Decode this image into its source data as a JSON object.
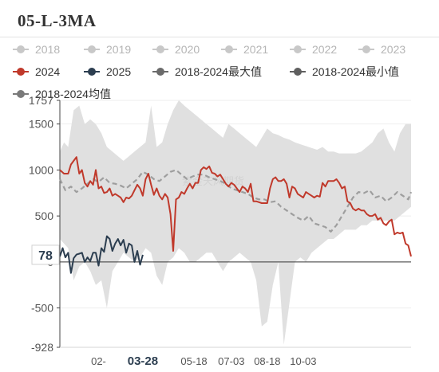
{
  "page": {
    "title": "05-L-3MA"
  },
  "legend": [
    {
      "label": "2018",
      "color": "#c8c8c8"
    },
    {
      "label": "2019",
      "color": "#c8c8c8"
    },
    {
      "label": "2020",
      "color": "#c8c8c8"
    },
    {
      "label": "2021",
      "color": "#c8c8c8"
    },
    {
      "label": "2022",
      "color": "#c8c8c8"
    },
    {
      "label": "2023",
      "color": "#c8c8c8"
    },
    {
      "label": "2024",
      "color": "#c0392b"
    },
    {
      "label": "2025",
      "color": "#2c3e50"
    },
    {
      "label": "2018-2024最大值",
      "color": "#6b6b6b"
    },
    {
      "label": "2018-2024最小值",
      "color": "#5f5f5f"
    },
    {
      "label": "2018-2024均值",
      "color": "#7a7a7a"
    }
  ],
  "watermark": "紫金天风期货",
  "chart_data": {
    "type": "line",
    "title": "05-L-3MA",
    "y_axis": {
      "min": -928,
      "max": 1757,
      "ticks": [
        -928,
        -500,
        0,
        500,
        1000,
        1500,
        1757
      ]
    },
    "x_axis": {
      "ticks": [
        "02-",
        "03-28",
        "05-18",
        "07-03",
        "08-18",
        "10-03"
      ],
      "highlight": "03-28"
    },
    "current_value_label": "78",
    "range_band": {
      "name": "2018-2024最大值 / 2018-2024最小值",
      "x": [
        0,
        3,
        6,
        10,
        14,
        18,
        22,
        26,
        30,
        34,
        38,
        42,
        46,
        50,
        54,
        58,
        62,
        66,
        70,
        74,
        78,
        82,
        86,
        90,
        94,
        98,
        102,
        106,
        110,
        114,
        118,
        122,
        126,
        130,
        134,
        138,
        142,
        146,
        150,
        154,
        158,
        162,
        166,
        170,
        174,
        178,
        182,
        186,
        190,
        194,
        198,
        202,
        206,
        210,
        214,
        218,
        222,
        226,
        230,
        234,
        238,
        242,
        246,
        250,
        254
      ],
      "max": [
        1200,
        1300,
        1250,
        1650,
        1700,
        1500,
        1550,
        1500,
        1400,
        1250,
        1200,
        1150,
        1100,
        1150,
        1200,
        1250,
        1300,
        1700,
        1250,
        1300,
        1500,
        1650,
        1757,
        1700,
        1650,
        1600,
        1550,
        1500,
        1450,
        1400,
        1350,
        1500,
        1450,
        1400,
        1350,
        1300,
        1250,
        1350,
        1450,
        1400,
        1380,
        1350,
        1330,
        1300,
        1280,
        1260,
        1240,
        1220,
        1250,
        1200,
        1200,
        1180,
        1180,
        1180,
        1180,
        1200,
        1250,
        1300,
        1400,
        1450,
        1300,
        1200,
        1400,
        1500,
        1500
      ],
      "min": [
        250,
        200,
        150,
        -200,
        -50,
        0,
        -100,
        -250,
        -200,
        -500,
        -100,
        0,
        100,
        50,
        0,
        50,
        150,
        100,
        -150,
        -250,
        0,
        50,
        150,
        100,
        0,
        0,
        50,
        100,
        100,
        0,
        -100,
        0,
        50,
        100,
        50,
        0,
        -200,
        -700,
        -650,
        -250,
        0,
        -900,
        -450,
        0,
        50,
        0,
        100,
        150,
        200,
        250,
        250,
        300,
        350,
        350,
        350,
        400,
        400,
        450,
        450,
        450,
        450,
        450,
        500,
        550,
        600
      ]
    },
    "series": [
      {
        "name": "2024",
        "color": "#c0392b",
        "x": [
          0,
          3,
          6,
          8,
          10,
          12,
          14,
          16,
          18,
          20,
          22,
          24,
          26,
          28,
          30,
          32,
          34,
          36,
          38,
          40,
          42,
          44,
          46,
          48,
          50,
          52,
          54,
          56,
          58,
          60,
          62,
          64,
          66,
          68,
          70,
          72,
          74,
          76,
          78,
          80,
          82,
          84,
          86,
          88,
          90,
          92,
          94,
          96,
          98,
          100,
          102,
          104,
          106,
          108,
          110,
          112,
          114,
          116,
          118,
          120,
          122,
          124,
          126,
          128,
          130,
          132,
          134,
          136,
          138,
          140,
          142,
          144,
          146,
          148,
          150,
          152,
          154,
          156,
          158,
          160,
          162,
          164,
          166,
          168,
          170,
          172,
          174,
          176,
          178,
          180,
          182,
          184,
          186,
          188,
          190,
          192,
          194,
          196,
          198,
          200,
          202,
          204,
          206,
          208,
          210,
          212,
          214,
          216,
          218,
          220,
          222,
          224,
          226,
          228,
          230,
          232,
          234,
          236,
          238,
          240,
          242,
          244,
          246,
          248,
          250,
          252,
          254
        ],
        "y": [
          1000,
          960,
          960,
          1060,
          1100,
          1140,
          960,
          1000,
          860,
          820,
          880,
          840,
          1000,
          800,
          820,
          750,
          760,
          800,
          720,
          740,
          720,
          700,
          650,
          700,
          690,
          720,
          780,
          840,
          800,
          720,
          900,
          960,
          840,
          730,
          800,
          720,
          680,
          740,
          700,
          520,
          120,
          680,
          700,
          760,
          740,
          800,
          850,
          800,
          860,
          860,
          1000,
          1030,
          1010,
          1040,
          970,
          960,
          930,
          950,
          900,
          850,
          820,
          860,
          840,
          800,
          760,
          820,
          800,
          760,
          850,
          660,
          660,
          650,
          640,
          640,
          640,
          800,
          900,
          920,
          880,
          880,
          900,
          850,
          700,
          820,
          800,
          740,
          720,
          700,
          760,
          740,
          720,
          700,
          720,
          710,
          860,
          820,
          880,
          880,
          880,
          900,
          860,
          800,
          820,
          660,
          640,
          580,
          560,
          580,
          560,
          560,
          520,
          500,
          500,
          520,
          460,
          480,
          420,
          400,
          440,
          460,
          300,
          320,
          310,
          320,
          200,
          180,
          60
        ]
      },
      {
        "name": "2025",
        "color": "#2c3e50",
        "x": [
          0,
          2,
          4,
          6,
          8,
          10,
          12,
          14,
          16,
          18,
          20,
          22,
          24,
          26,
          28,
          30,
          32,
          34,
          36,
          38,
          40,
          42,
          44,
          46,
          48,
          50,
          52,
          54,
          56,
          58,
          60
        ],
        "y": [
          60,
          150,
          50,
          100,
          -120,
          40,
          80,
          90,
          100,
          0,
          50,
          10,
          100,
          100,
          -40,
          150,
          110,
          280,
          250,
          120,
          200,
          250,
          180,
          240,
          100,
          200,
          180,
          0,
          120,
          -30,
          78
        ]
      },
      {
        "name": "2018-2024均值",
        "color": "#9e9e9e",
        "x": [
          0,
          4,
          8,
          12,
          16,
          20,
          24,
          28,
          32,
          36,
          40,
          44,
          48,
          52,
          56,
          60,
          64,
          68,
          72,
          76,
          80,
          84,
          88,
          92,
          96,
          100,
          104,
          108,
          112,
          116,
          120,
          124,
          128,
          132,
          136,
          140,
          144,
          148,
          152,
          156,
          160,
          164,
          168,
          172,
          176,
          180,
          184,
          188,
          192,
          196,
          200,
          204,
          208,
          212,
          216,
          220,
          224,
          228,
          232,
          236,
          240,
          244,
          248,
          252,
          254
        ],
        "y": [
          900,
          780,
          820,
          760,
          800,
          850,
          900,
          870,
          920,
          860,
          850,
          830,
          800,
          850,
          900,
          980,
          950,
          900,
          880,
          930,
          980,
          1000,
          950,
          900,
          930,
          950,
          950,
          920,
          900,
          880,
          850,
          800,
          780,
          760,
          740,
          700,
          680,
          680,
          650,
          660,
          600,
          560,
          520,
          480,
          450,
          500,
          420,
          400,
          380,
          330,
          400,
          500,
          600,
          700,
          760,
          750,
          780,
          700,
          720,
          660,
          700,
          760,
          720,
          680,
          760
        ]
      }
    ],
    "x_index_range": [
      0,
      254
    ],
    "tick_positions": [
      28,
      60,
      97,
      124,
      150,
      176
    ]
  }
}
